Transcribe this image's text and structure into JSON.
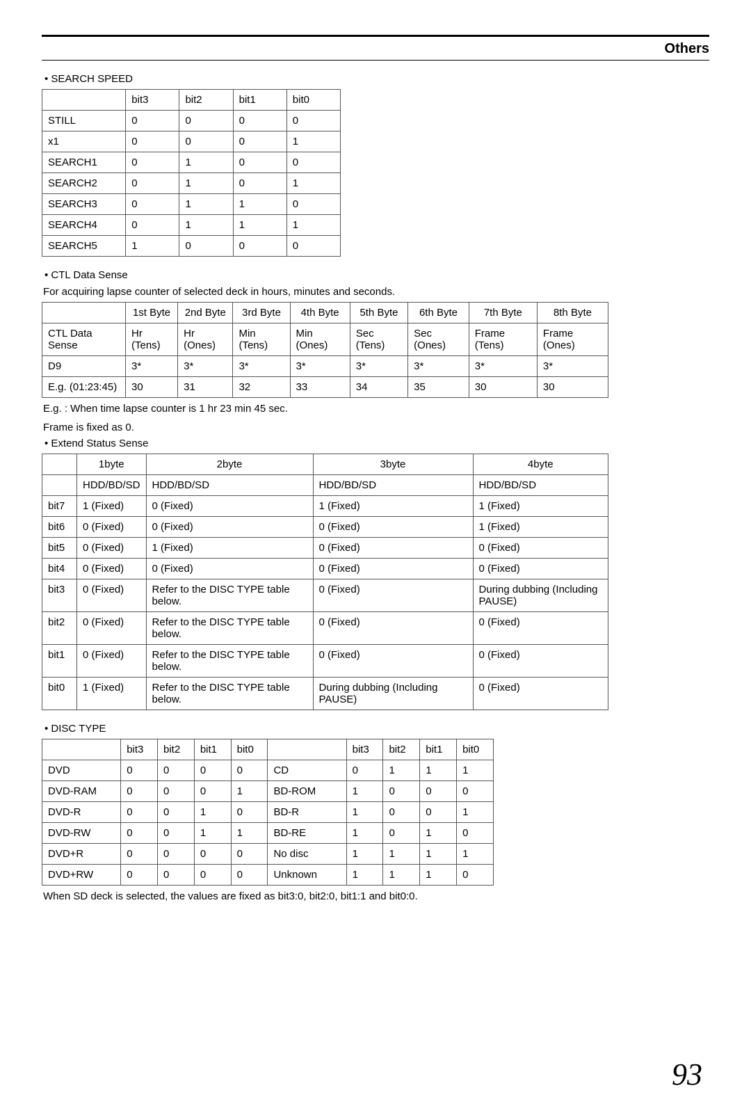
{
  "header": {
    "title": "Others"
  },
  "search_speed": {
    "label": "•  SEARCH SPEED",
    "headers": [
      "",
      "bit3",
      "bit2",
      "bit1",
      "bit0"
    ],
    "rows": [
      [
        "STILL",
        "0",
        "0",
        "0",
        "0"
      ],
      [
        "x1",
        "0",
        "0",
        "0",
        "1"
      ],
      [
        "SEARCH1",
        "0",
        "1",
        "0",
        "0"
      ],
      [
        "SEARCH2",
        "0",
        "1",
        "0",
        "1"
      ],
      [
        "SEARCH3",
        "0",
        "1",
        "1",
        "0"
      ],
      [
        "SEARCH4",
        "0",
        "1",
        "1",
        "1"
      ],
      [
        "SEARCH5",
        "1",
        "0",
        "0",
        "0"
      ]
    ]
  },
  "ctl_data": {
    "label": "•  CTL Data Sense",
    "desc": "For acquiring lapse counter of selected deck in hours, minutes and seconds.",
    "headers": [
      "",
      "1st Byte",
      "2nd Byte",
      "3rd Byte",
      "4th Byte",
      "5th Byte",
      "6th Byte",
      "7th Byte",
      "8th Byte"
    ],
    "rows": [
      [
        "CTL Data Sense",
        "Hr (Tens)",
        "Hr (Ones)",
        "Min (Tens)",
        "Min (Ones)",
        "Sec (Tens)",
        "Sec (Ones)",
        "Frame (Tens)",
        "Frame (Ones)"
      ],
      [
        "D9",
        "3*",
        "3*",
        "3*",
        "3*",
        "3*",
        "3*",
        "3*",
        "3*"
      ],
      [
        "E.g. (01:23:45)",
        "30",
        "31",
        "32",
        "33",
        "34",
        "35",
        "30",
        "30"
      ]
    ],
    "note1": "E.g. :  When time lapse counter is 1 hr 23 min 45 sec.",
    "note2": "Frame is fixed as 0."
  },
  "ext_status": {
    "label": "•  Extend Status Sense",
    "headers": [
      "",
      "1byte",
      "2byte",
      "3byte",
      "4byte"
    ],
    "subhead": [
      "",
      "HDD/BD/SD",
      "HDD/BD/SD",
      "HDD/BD/SD",
      "HDD/BD/SD"
    ],
    "rows": [
      [
        "bit7",
        "1 (Fixed)",
        "0 (Fixed)",
        "1 (Fixed)",
        "1 (Fixed)"
      ],
      [
        "bit6",
        "0 (Fixed)",
        "0 (Fixed)",
        "0 (Fixed)",
        "1 (Fixed)"
      ],
      [
        "bit5",
        "0 (Fixed)",
        "1 (Fixed)",
        "0 (Fixed)",
        "0 (Fixed)"
      ],
      [
        "bit4",
        "0 (Fixed)",
        "0 (Fixed)",
        "0 (Fixed)",
        "0 (Fixed)"
      ],
      [
        "bit3",
        "0 (Fixed)",
        "Refer to the DISC TYPE table below.",
        "0 (Fixed)",
        "During dubbing (Including PAUSE)"
      ],
      [
        "bit2",
        "0 (Fixed)",
        "Refer to the DISC TYPE table below.",
        "0 (Fixed)",
        "0 (Fixed)"
      ],
      [
        "bit1",
        "0 (Fixed)",
        "Refer to the DISC TYPE table below.",
        "0 (Fixed)",
        "0 (Fixed)"
      ],
      [
        "bit0",
        "1 (Fixed)",
        "Refer to the DISC TYPE table below.",
        "During dubbing (Including PAUSE)",
        "0 (Fixed)"
      ]
    ]
  },
  "disc_type": {
    "label": "•  DISC TYPE",
    "headers": [
      "",
      "bit3",
      "bit2",
      "bit1",
      "bit0",
      "",
      "bit3",
      "bit2",
      "bit1",
      "bit0"
    ],
    "rows": [
      [
        "DVD",
        "0",
        "0",
        "0",
        "0",
        "CD",
        "0",
        "1",
        "1",
        "1"
      ],
      [
        "DVD-RAM",
        "0",
        "0",
        "0",
        "1",
        "BD-ROM",
        "1",
        "0",
        "0",
        "0"
      ],
      [
        "DVD-R",
        "0",
        "0",
        "1",
        "0",
        "BD-R",
        "1",
        "0",
        "0",
        "1"
      ],
      [
        "DVD-RW",
        "0",
        "0",
        "1",
        "1",
        "BD-RE",
        "1",
        "0",
        "1",
        "0"
      ],
      [
        "DVD+R",
        "0",
        "0",
        "0",
        "0",
        "No disc",
        "1",
        "1",
        "1",
        "1"
      ],
      [
        "DVD+RW",
        "0",
        "0",
        "0",
        "0",
        "Unknown",
        "1",
        "1",
        "1",
        "0"
      ]
    ],
    "note": "When SD deck is selected, the values are fixed as bit3:0, bit2:0, bit1:1 and bit0:0."
  },
  "page_number": "93"
}
